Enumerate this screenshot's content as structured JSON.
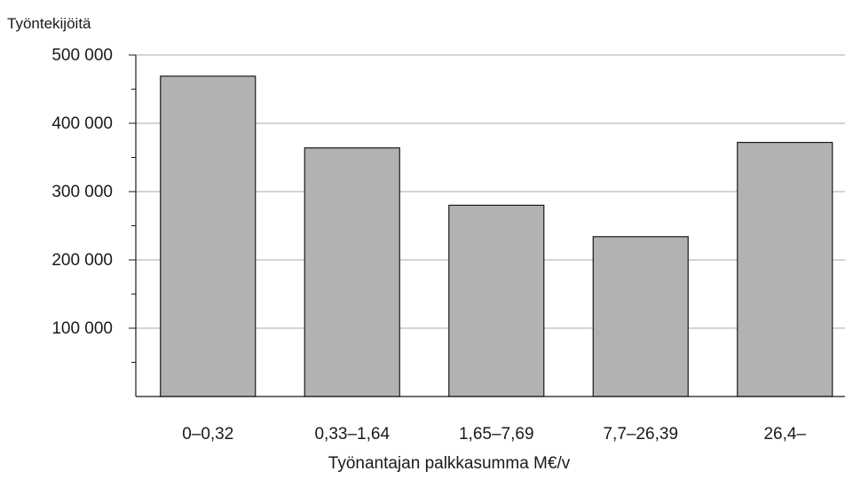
{
  "chart_data": {
    "type": "bar",
    "categories": [
      "0–0,32",
      "0,33–1,64",
      "1,65–7,69",
      "7,7–26,39",
      "26,4–"
    ],
    "values": [
      469000,
      364000,
      280000,
      234000,
      372000
    ],
    "ylabel": "Työntekijöitä",
    "xlabel": "Työnantajan palkkasumma M€/v",
    "ylim": [
      0,
      500000
    ],
    "yticks": [
      {
        "value": 100000,
        "label": "100 000"
      },
      {
        "value": 200000,
        "label": "200 000"
      },
      {
        "value": 300000,
        "label": "300 000"
      },
      {
        "value": 400000,
        "label": "400 000"
      },
      {
        "value": 500000,
        "label": "500 000"
      }
    ],
    "minor_tick_step": 50000,
    "grid": true,
    "bar_color": "#b2b2b4",
    "bar_edge_color": "#1a1a1a",
    "grid_color": "#a8a8a8"
  }
}
